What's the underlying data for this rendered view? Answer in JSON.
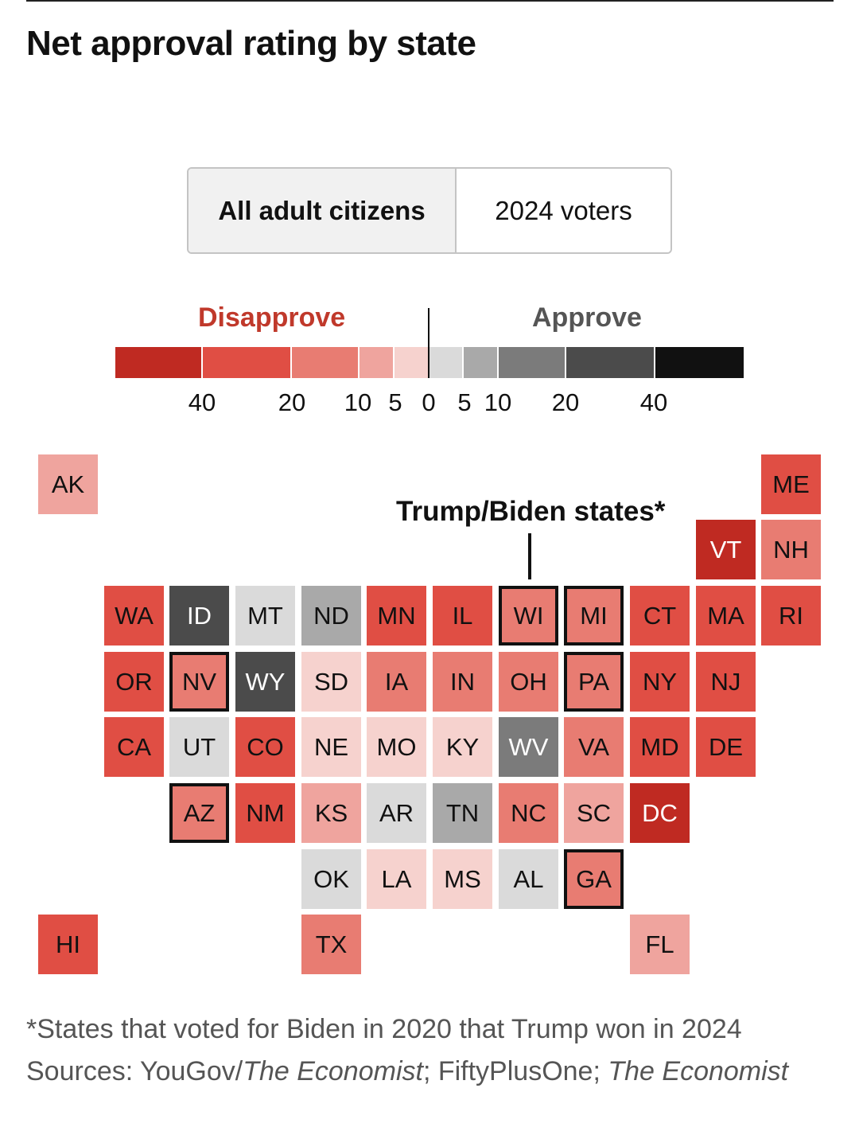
{
  "title": "Net approval rating by state",
  "toggle": {
    "active": "All adult citizens",
    "inactive": "2024 voters"
  },
  "legend": {
    "disapprove_label": "Disapprove",
    "approve_label": "Approve",
    "tick_labels": [
      "40",
      "20",
      "10",
      "5",
      "0",
      "5",
      "10",
      "20",
      "40"
    ],
    "colors": {
      "dis_40_plus": "#bf2a22",
      "dis_20_40": "#e04e44",
      "dis_10_20": "#e87c72",
      "dis_5_10": "#efa49e",
      "dis_0_5": "#f6d2ce",
      "app_0_5": "#dadada",
      "app_5_10": "#a9a9a9",
      "app_10_20": "#7b7b7b",
      "app_20_40": "#4b4b4b",
      "app_40_plus": "#111111"
    }
  },
  "annotation": "Trump/Biden states*",
  "chart_data": {
    "type": "heatmap",
    "title": "Net approval rating by state",
    "description_note_scale": "net approval bins: -40+, -40 to -20, -20 to -10, -10 to -5, -5 to 0, 0 to 5, 5 to 10, 10 to 20, 20 to 40, 40+",
    "states": [
      {
        "code": "AK",
        "bin": "dis_5_10",
        "trump_biden": false
      },
      {
        "code": "ME",
        "bin": "dis_20_40",
        "trump_biden": false
      },
      {
        "code": "VT",
        "bin": "dis_40_plus",
        "trump_biden": false
      },
      {
        "code": "NH",
        "bin": "dis_10_20",
        "trump_biden": false
      },
      {
        "code": "WA",
        "bin": "dis_20_40",
        "trump_biden": false
      },
      {
        "code": "ID",
        "bin": "app_20_40",
        "trump_biden": false
      },
      {
        "code": "MT",
        "bin": "app_0_5",
        "trump_biden": false
      },
      {
        "code": "ND",
        "bin": "app_5_10",
        "trump_biden": false
      },
      {
        "code": "MN",
        "bin": "dis_20_40",
        "trump_biden": false
      },
      {
        "code": "IL",
        "bin": "dis_20_40",
        "trump_biden": false
      },
      {
        "code": "WI",
        "bin": "dis_10_20",
        "trump_biden": true
      },
      {
        "code": "MI",
        "bin": "dis_10_20",
        "trump_biden": true
      },
      {
        "code": "CT",
        "bin": "dis_20_40",
        "trump_biden": false
      },
      {
        "code": "MA",
        "bin": "dis_20_40",
        "trump_biden": false
      },
      {
        "code": "RI",
        "bin": "dis_20_40",
        "trump_biden": false
      },
      {
        "code": "OR",
        "bin": "dis_20_40",
        "trump_biden": false
      },
      {
        "code": "NV",
        "bin": "dis_10_20",
        "trump_biden": true
      },
      {
        "code": "WY",
        "bin": "app_20_40",
        "trump_biden": false
      },
      {
        "code": "SD",
        "bin": "dis_0_5",
        "trump_biden": false
      },
      {
        "code": "IA",
        "bin": "dis_10_20",
        "trump_biden": false
      },
      {
        "code": "IN",
        "bin": "dis_10_20",
        "trump_biden": false
      },
      {
        "code": "OH",
        "bin": "dis_10_20",
        "trump_biden": false
      },
      {
        "code": "PA",
        "bin": "dis_10_20",
        "trump_biden": true
      },
      {
        "code": "NY",
        "bin": "dis_20_40",
        "trump_biden": false
      },
      {
        "code": "NJ",
        "bin": "dis_20_40",
        "trump_biden": false
      },
      {
        "code": "CA",
        "bin": "dis_20_40",
        "trump_biden": false
      },
      {
        "code": "UT",
        "bin": "app_0_5",
        "trump_biden": false
      },
      {
        "code": "CO",
        "bin": "dis_20_40",
        "trump_biden": false
      },
      {
        "code": "NE",
        "bin": "dis_0_5",
        "trump_biden": false
      },
      {
        "code": "MO",
        "bin": "dis_0_5",
        "trump_biden": false
      },
      {
        "code": "KY",
        "bin": "dis_0_5",
        "trump_biden": false
      },
      {
        "code": "WV",
        "bin": "app_10_20",
        "trump_biden": false
      },
      {
        "code": "VA",
        "bin": "dis_10_20",
        "trump_biden": false
      },
      {
        "code": "MD",
        "bin": "dis_20_40",
        "trump_biden": false
      },
      {
        "code": "DE",
        "bin": "dis_20_40",
        "trump_biden": false
      },
      {
        "code": "AZ",
        "bin": "dis_10_20",
        "trump_biden": true
      },
      {
        "code": "NM",
        "bin": "dis_20_40",
        "trump_biden": false
      },
      {
        "code": "KS",
        "bin": "dis_5_10",
        "trump_biden": false
      },
      {
        "code": "AR",
        "bin": "app_0_5",
        "trump_biden": false
      },
      {
        "code": "TN",
        "bin": "app_5_10",
        "trump_biden": false
      },
      {
        "code": "NC",
        "bin": "dis_10_20",
        "trump_biden": false
      },
      {
        "code": "SC",
        "bin": "dis_5_10",
        "trump_biden": false
      },
      {
        "code": "DC",
        "bin": "dis_40_plus",
        "trump_biden": false
      },
      {
        "code": "OK",
        "bin": "app_0_5",
        "trump_biden": false
      },
      {
        "code": "LA",
        "bin": "dis_0_5",
        "trump_biden": false
      },
      {
        "code": "MS",
        "bin": "dis_0_5",
        "trump_biden": false
      },
      {
        "code": "AL",
        "bin": "app_0_5",
        "trump_biden": false
      },
      {
        "code": "GA",
        "bin": "dis_10_20",
        "trump_biden": true
      },
      {
        "code": "HI",
        "bin": "dis_20_40",
        "trump_biden": false
      },
      {
        "code": "TX",
        "bin": "dis_10_20",
        "trump_biden": false
      },
      {
        "code": "FL",
        "bin": "dis_5_10",
        "trump_biden": false
      }
    ]
  },
  "footnote": {
    "note": "*States that voted for Biden in 2020 that Trump won in 2024",
    "sources_prefix": "Sources: YouGov/",
    "source_1": "The Economist",
    "sources_middle": "; FiftyPlusOne; ",
    "source_2": "The Economist"
  }
}
